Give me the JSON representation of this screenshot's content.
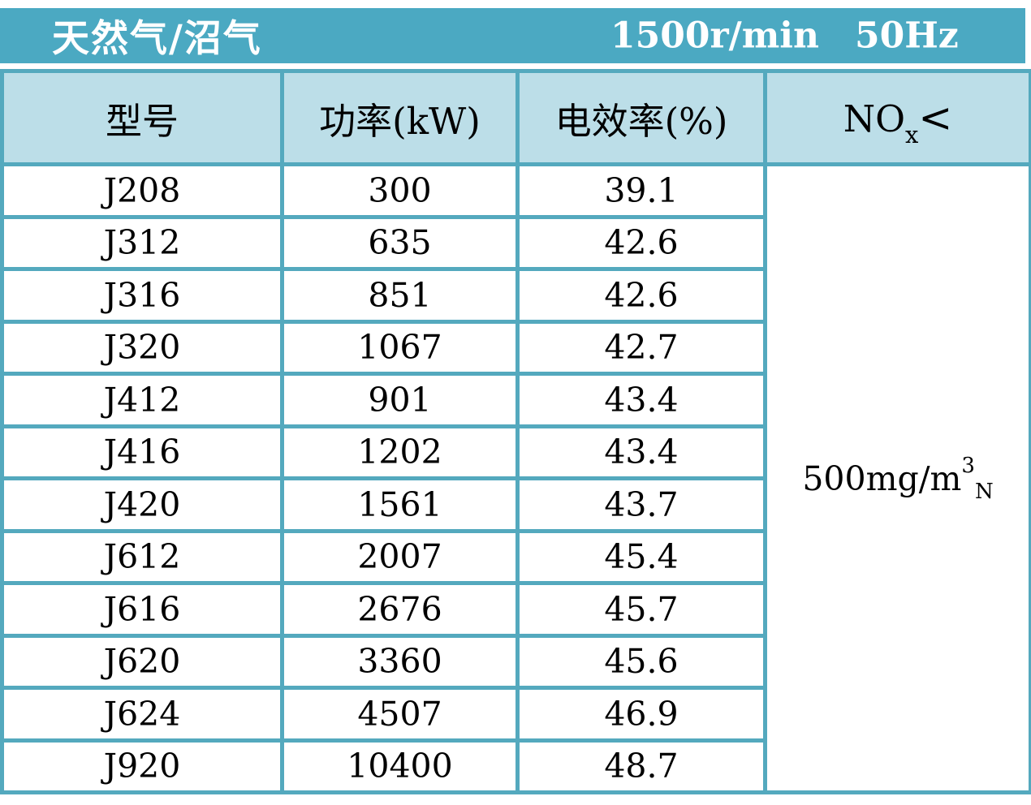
{
  "title_bar": {
    "fuel_type": "天然气/沼气",
    "speed": "1500r/min",
    "frequency": "50Hz"
  },
  "table": {
    "headers": {
      "model": "型号",
      "power": "功率(kW)",
      "efficiency": "电效率(%)",
      "nox_base": "NO",
      "nox_sub": "x",
      "nox_symbol": "<"
    },
    "rows": [
      {
        "model": "J208",
        "power": "300",
        "efficiency": "39.1"
      },
      {
        "model": "J312",
        "power": "635",
        "efficiency": "42.6"
      },
      {
        "model": "J316",
        "power": "851",
        "efficiency": "42.6"
      },
      {
        "model": "J320",
        "power": "1067",
        "efficiency": "42.7"
      },
      {
        "model": "J412",
        "power": "901",
        "efficiency": "43.4"
      },
      {
        "model": "J416",
        "power": "1202",
        "efficiency": "43.4"
      },
      {
        "model": "J420",
        "power": "1561",
        "efficiency": "43.7"
      },
      {
        "model": "J612",
        "power": "2007",
        "efficiency": "45.4"
      },
      {
        "model": "J616",
        "power": "2676",
        "efficiency": "45.7"
      },
      {
        "model": "J620",
        "power": "3360",
        "efficiency": "45.6"
      },
      {
        "model": "J624",
        "power": "4507",
        "efficiency": "46.9"
      },
      {
        "model": "J920",
        "power": "10400",
        "efficiency": "48.7"
      }
    ],
    "nox_limit": {
      "prefix": "500mg/m",
      "sup": "3",
      "sub": "N"
    }
  },
  "colors": {
    "teal_bar": "#4BA9C2",
    "border_teal": "#54A9BE",
    "header_bg": "#BCDEE8",
    "row_bg": "#FFFFFF",
    "title_text": "#FFFFFF",
    "body_text": "#000000"
  },
  "chart_data": {
    "type": "table",
    "title": "天然气/沼气 1500r/min 50Hz",
    "columns": [
      "型号",
      "功率(kW)",
      "电效率(%)",
      "NOx<"
    ],
    "rows": [
      [
        "J208",
        300,
        39.1
      ],
      [
        "J312",
        635,
        42.6
      ],
      [
        "J316",
        851,
        42.6
      ],
      [
        "J320",
        1067,
        42.7
      ],
      [
        "J412",
        901,
        43.4
      ],
      [
        "J416",
        1202,
        43.4
      ],
      [
        "J420",
        1561,
        43.7
      ],
      [
        "J612",
        2007,
        45.4
      ],
      [
        "J616",
        2676,
        45.7
      ],
      [
        "J620",
        3360,
        45.6
      ],
      [
        "J624",
        4507,
        46.9
      ],
      [
        "J920",
        10400,
        48.7
      ]
    ],
    "nox_limit_all_rows": "500mg/m3(N)",
    "notes": "NOx column is a single merged cell spanning all 12 data rows"
  }
}
